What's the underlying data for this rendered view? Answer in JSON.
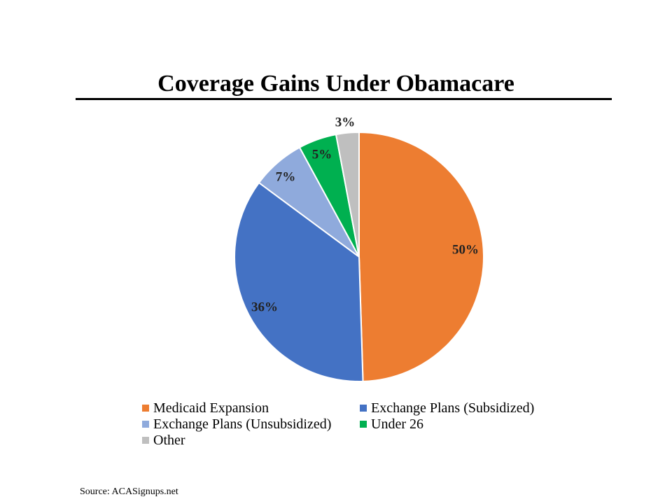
{
  "title": "Coverage Gains Under Obamacare",
  "source": "Source: ACASignups.net",
  "chart_data": {
    "type": "pie",
    "title": "Coverage Gains Under Obamacare",
    "unit": "%",
    "slices": [
      {
        "label": "Medicaid Expansion",
        "value": 50,
        "display": "50%",
        "color": "#ED7D31"
      },
      {
        "label": "Exchange Plans (Subsidized)",
        "value": 36,
        "display": "36%",
        "color": "#4472C4"
      },
      {
        "label": "Exchange Plans (Unsubsidized)",
        "value": 7,
        "display": "7%",
        "color": "#8FAADC"
      },
      {
        "label": "Under 26",
        "value": 5,
        "display": "5%",
        "color": "#00B050"
      },
      {
        "label": "Other",
        "value": 3,
        "display": "3%",
        "color": "#BFBFBF"
      }
    ],
    "legend_position": "bottom"
  }
}
